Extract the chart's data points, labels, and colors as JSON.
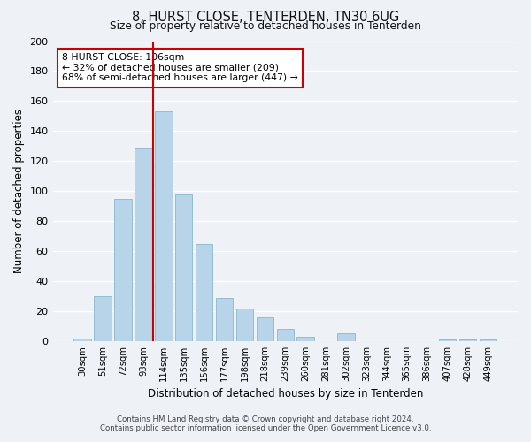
{
  "title": "8, HURST CLOSE, TENTERDEN, TN30 6UG",
  "subtitle": "Size of property relative to detached houses in Tenterden",
  "xlabel": "Distribution of detached houses by size in Tenterden",
  "ylabel": "Number of detached properties",
  "bar_color": "#b8d4e8",
  "bar_edge_color": "#8ab8d0",
  "background_color": "#eef2f7",
  "grid_color": "#ffffff",
  "vline_color": "#cc0000",
  "vline_x": 3.5,
  "categories": [
    "30sqm",
    "51sqm",
    "72sqm",
    "93sqm",
    "114sqm",
    "135sqm",
    "156sqm",
    "177sqm",
    "198sqm",
    "218sqm",
    "239sqm",
    "260sqm",
    "281sqm",
    "302sqm",
    "323sqm",
    "344sqm",
    "365sqm",
    "386sqm",
    "407sqm",
    "428sqm",
    "449sqm"
  ],
  "values": [
    2,
    30,
    95,
    129,
    153,
    98,
    65,
    29,
    22,
    16,
    8,
    3,
    0,
    5,
    0,
    0,
    0,
    0,
    1,
    1,
    1
  ],
  "annotation_title": "8 HURST CLOSE: 106sqm",
  "annotation_line1": "← 32% of detached houses are smaller (209)",
  "annotation_line2": "68% of semi-detached houses are larger (447) →",
  "annotation_box_color": "#ffffff",
  "annotation_box_edge": "#cc0000",
  "footer_line1": "Contains HM Land Registry data © Crown copyright and database right 2024.",
  "footer_line2": "Contains public sector information licensed under the Open Government Licence v3.0.",
  "ylim": [
    0,
    200
  ],
  "yticks": [
    0,
    20,
    40,
    60,
    80,
    100,
    120,
    140,
    160,
    180,
    200
  ]
}
